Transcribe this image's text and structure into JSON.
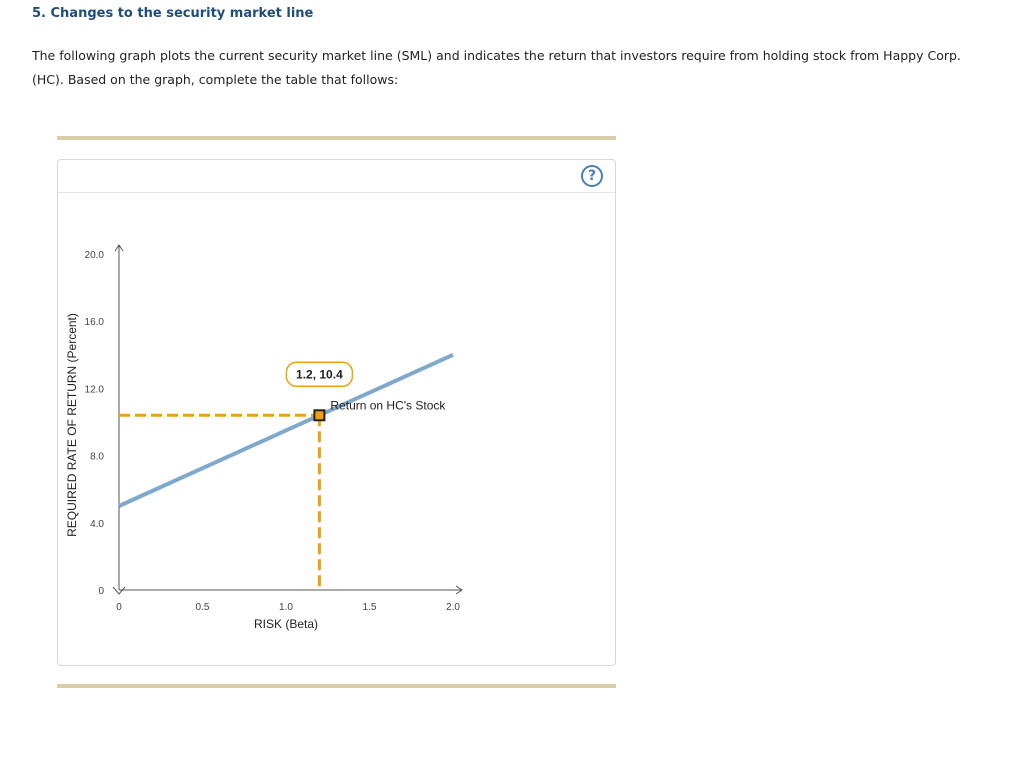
{
  "page": {
    "title": "5. Changes to the security market line",
    "intro": "The following graph plots the current security market line (SML) and indicates the return that investors require from holding stock from Happy Corp. (HC). Based on the graph, complete the table that follows:",
    "help_label": "?"
  },
  "colors": {
    "sml_line": "#7fa9cc",
    "dashed": "#f0a20c",
    "point_border": "#222222",
    "callout_border": "#f0a20c"
  },
  "chart_data": {
    "type": "line",
    "xlabel": "RISK (Beta)",
    "ylabel": "REQUIRED RATE OF RETURN (Percent)",
    "xlim": [
      0,
      2.0
    ],
    "ylim": [
      0,
      20.0
    ],
    "x_ticks": [
      "0",
      "0.5",
      "1.0",
      "1.5",
      "2.0"
    ],
    "y_ticks": [
      "0",
      "4.0",
      "8.0",
      "12.0",
      "16.0",
      "20.0"
    ],
    "series": [
      {
        "name": "SML",
        "x": [
          0,
          2.0
        ],
        "y": [
          5.0,
          14.0
        ]
      }
    ],
    "point": {
      "x": 1.2,
      "y": 10.4,
      "label": "1.2, 10.4",
      "annotation": "Return on HC's Stock"
    },
    "grid": false
  }
}
